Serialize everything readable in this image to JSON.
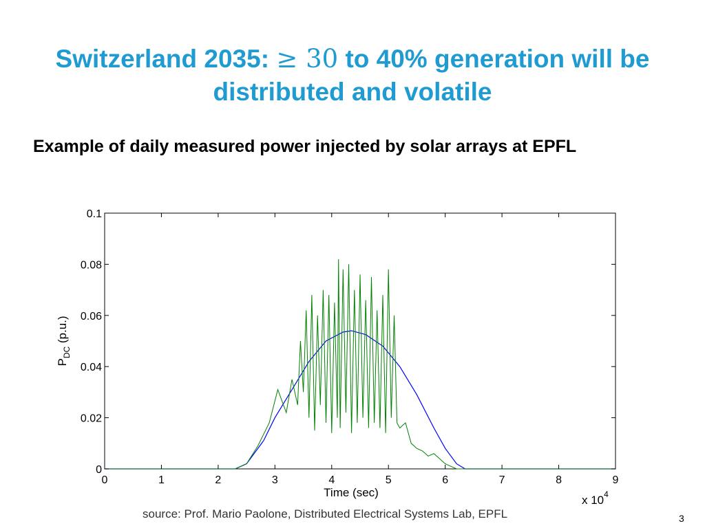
{
  "slide": {
    "title_part1": "Switzerland 2035: ",
    "title_math": "≥ 30",
    "title_part2": " to 40% generation will be",
    "title_line2": "distributed and volatile",
    "subtitle": "Example of daily measured power injected by solar arrays at EPFL",
    "source": "source: Prof. Mario Paolone, Distributed Electrical Systems Lab, EPFL",
    "page_number": "3"
  },
  "chart_data": {
    "type": "line",
    "xlabel": "Time (sec)",
    "ylabel_main": "P",
    "ylabel_sub": "DC",
    "ylabel_unit": " (p.u.)",
    "x_multiplier": "x 10",
    "x_multiplier_exp": "4",
    "xlim": [
      0,
      9
    ],
    "ylim": [
      0,
      0.1
    ],
    "x_ticks": [
      "0",
      "1",
      "2",
      "3",
      "4",
      "5",
      "6",
      "7",
      "8",
      "9"
    ],
    "y_ticks": [
      "0",
      "0.02",
      "0.04",
      "0.06",
      "0.08",
      "0.1"
    ],
    "grid": false,
    "colors": {
      "measured": "#008000",
      "envelope": "#0000ff"
    },
    "series": [
      {
        "key": "envelope",
        "x": [
          0,
          2.3,
          2.5,
          2.8,
          3.0,
          3.3,
          3.6,
          3.9,
          4.2,
          4.35,
          4.6,
          4.9,
          5.2,
          5.5,
          5.8,
          6.0,
          6.2,
          6.35,
          6.5,
          9
        ],
        "y": [
          0,
          0,
          0.002,
          0.011,
          0.02,
          0.031,
          0.042,
          0.05,
          0.0535,
          0.054,
          0.0525,
          0.048,
          0.04,
          0.029,
          0.016,
          0.008,
          0.002,
          0.0,
          0,
          0
        ]
      },
      {
        "key": "measured",
        "x": [
          0,
          2.3,
          2.5,
          2.7,
          2.9,
          3.05,
          3.1,
          3.2,
          3.3,
          3.4,
          3.45,
          3.5,
          3.55,
          3.6,
          3.65,
          3.7,
          3.75,
          3.8,
          3.85,
          3.9,
          3.95,
          4.0,
          4.05,
          4.1,
          4.12,
          4.15,
          4.2,
          4.25,
          4.3,
          4.35,
          4.4,
          4.45,
          4.5,
          4.55,
          4.6,
          4.65,
          4.7,
          4.75,
          4.8,
          4.85,
          4.9,
          4.95,
          5.0,
          5.05,
          5.1,
          5.15,
          5.2,
          5.3,
          5.4,
          5.5,
          5.6,
          5.7,
          5.8,
          5.9,
          6.0,
          6.1,
          6.2,
          6.3,
          9
        ],
        "y": [
          0,
          0,
          0.002,
          0.009,
          0.018,
          0.031,
          0.028,
          0.022,
          0.035,
          0.025,
          0.05,
          0.03,
          0.062,
          0.02,
          0.068,
          0.015,
          0.06,
          0.025,
          0.07,
          0.018,
          0.068,
          0.014,
          0.065,
          0.02,
          0.082,
          0.016,
          0.078,
          0.022,
          0.08,
          0.014,
          0.07,
          0.018,
          0.076,
          0.02,
          0.066,
          0.016,
          0.075,
          0.018,
          0.062,
          0.016,
          0.068,
          0.014,
          0.078,
          0.02,
          0.06,
          0.018,
          0.016,
          0.018,
          0.01,
          0.008,
          0.007,
          0.005,
          0.006,
          0.004,
          0.002,
          0.001,
          0.0,
          0,
          0
        ]
      }
    ]
  }
}
